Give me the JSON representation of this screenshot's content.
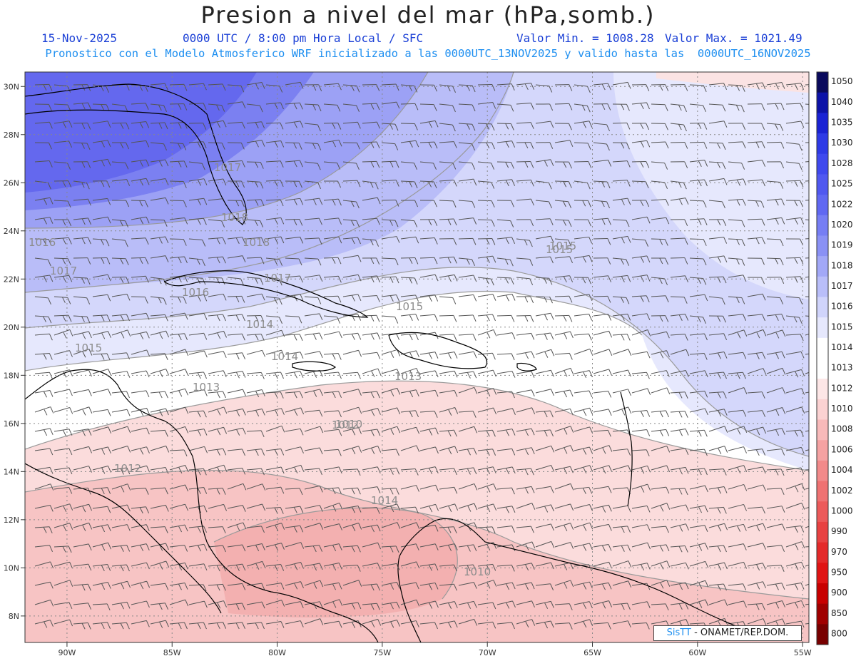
{
  "header": {
    "title": "Presion a nivel del mar (hPa,somb.)",
    "date": "15-Nov-2025",
    "time": "0000 UTC / 8:00 pm Hora Local / SFC",
    "vmin": "Valor Min. = 1008.28",
    "vmax": "Valor Max. = 1021.49",
    "subtitle": "Pronostico con el Modelo Atmosferico WRF inicializado a las 0000UTC_13NOV2025 y valido hasta las  0000UTC_16NOV2025"
  },
  "map": {
    "lon_range": [
      -92.0,
      -54.7
    ],
    "lat_range": [
      6.9,
      30.6
    ],
    "lon_ticks": [
      "90W",
      "85W",
      "80W",
      "75W",
      "70W",
      "65W",
      "60W",
      "55W"
    ],
    "lat_ticks": [
      "30N",
      "28N",
      "26N",
      "24N",
      "22N",
      "20N",
      "18N",
      "16N",
      "14N",
      "12N",
      "10N",
      "8N"
    ],
    "contour_labels": [
      "1017",
      "1018",
      "1016",
      "1018",
      "1017",
      "1016",
      "1017",
      "1015",
      "1014",
      "1015",
      "1015",
      "1014",
      "1013",
      "1013",
      "1012",
      "1012",
      "1014",
      "1010",
      "1010",
      "1015"
    ],
    "colors": {
      "high": "#6b6ef0",
      "mid": "#b7bcf6",
      "neutral": "#ffffff",
      "low": "#f6c6c6",
      "contour": "#9a9a9a",
      "coast": "#000000",
      "barb": "#555555"
    }
  },
  "colorbar": {
    "labels": [
      "1050",
      "1040",
      "1035",
      "1030",
      "1028",
      "1025",
      "1022",
      "1020",
      "1019",
      "1018",
      "1017",
      "1016",
      "1015",
      "1014",
      "1013",
      "1012",
      "1010",
      "1008",
      "1006",
      "1004",
      "1002",
      "1000",
      "990",
      "970",
      "950",
      "900",
      "850",
      "800"
    ],
    "colors": [
      "#0a0a5c",
      "#0d13a8",
      "#1a23d4",
      "#2e3ae6",
      "#3f49ee",
      "#5058f0",
      "#6068f2",
      "#767ef4",
      "#8a91f5",
      "#a2a8f7",
      "#b9bef9",
      "#d0d4fb",
      "#e6e8fd",
      "#ffffff",
      "#ffffff",
      "#fde6e6",
      "#fbd2d2",
      "#f8baba",
      "#f5a2a2",
      "#f28a8a",
      "#ef7272",
      "#ec5a5a",
      "#e84242",
      "#e42a2a",
      "#e01414",
      "#c80000",
      "#a00000",
      "#780000"
    ]
  },
  "credit": {
    "brand": "SisTT",
    "org": "- ONAMET/REP.DOM."
  }
}
